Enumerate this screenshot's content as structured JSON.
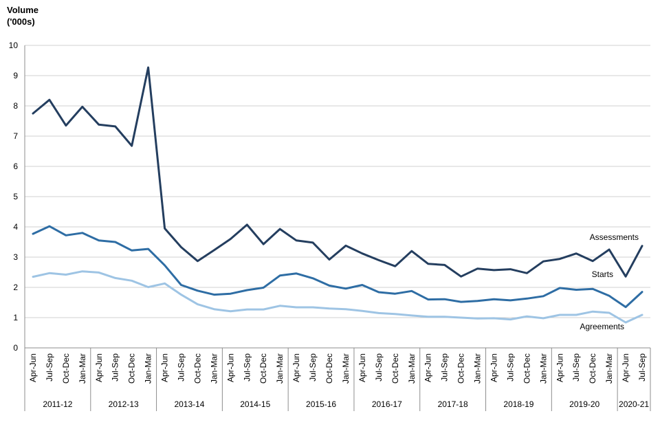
{
  "chart_data": {
    "type": "line",
    "title": "",
    "ylabel_line1": "Volume",
    "ylabel_line2": "('000s)",
    "xlabel": "",
    "ylim": [
      0,
      10
    ],
    "yticks": [
      0,
      1,
      2,
      3,
      4,
      5,
      6,
      7,
      8,
      9,
      10
    ],
    "grid": true,
    "categories": [
      "Apr-Jun",
      "Jul-Sep",
      "Oct-Dec",
      "Jan-Mar",
      "Apr-Jun",
      "Jul-Sep",
      "Oct-Dec",
      "Jan-Mar",
      "Apr-Jun",
      "Jul-Sep",
      "Oct-Dec",
      "Jan-Mar",
      "Apr-Jun",
      "Jul-Sep",
      "Oct-Dec",
      "Jan-Mar",
      "Apr-Jun",
      "Jul-Sep",
      "Oct-Dec",
      "Jan-Mar",
      "Apr-Jun",
      "Jul-Sep",
      "Oct-Dec",
      "Jan-Mar",
      "Apr-Jun",
      "Jul-Sep",
      "Oct-Dec",
      "Jan-Mar",
      "Apr-Jun",
      "Jul-Sep",
      "Oct-Dec",
      "Jan-Mar",
      "Apr-Jun",
      "Jul-Sep",
      "Oct-Dec",
      "Jan-Mar",
      "Apr-Jun",
      "Jul-Sep"
    ],
    "year_groups": [
      {
        "label": "2011-12",
        "count": 4
      },
      {
        "label": "2012-13",
        "count": 4
      },
      {
        "label": "2013-14",
        "count": 4
      },
      {
        "label": "2014-15",
        "count": 4
      },
      {
        "label": "2015-16",
        "count": 4
      },
      {
        "label": "2016-17",
        "count": 4
      },
      {
        "label": "2017-18",
        "count": 4
      },
      {
        "label": "2018-19",
        "count": 4
      },
      {
        "label": "2019-20",
        "count": 4
      },
      {
        "label": "2020-21",
        "count": 2
      }
    ],
    "series": [
      {
        "name": "Assessments",
        "color": "#243e5f",
        "values": [
          7.75,
          8.2,
          7.35,
          7.97,
          7.38,
          7.32,
          6.68,
          9.27,
          3.95,
          3.33,
          2.87,
          3.23,
          3.6,
          4.07,
          3.43,
          3.93,
          3.55,
          3.48,
          2.92,
          3.38,
          3.12,
          2.9,
          2.7,
          3.2,
          2.78,
          2.74,
          2.36,
          2.62,
          2.57,
          2.6,
          2.47,
          2.86,
          2.94,
          3.12,
          2.87,
          3.25,
          2.36,
          3.37
        ]
      },
      {
        "name": "Starts",
        "color": "#2e6da4",
        "values": [
          3.77,
          4.02,
          3.72,
          3.8,
          3.55,
          3.5,
          3.22,
          3.27,
          2.73,
          2.08,
          1.89,
          1.76,
          1.79,
          1.91,
          1.99,
          2.39,
          2.46,
          2.3,
          2.06,
          1.96,
          2.08,
          1.84,
          1.79,
          1.88,
          1.6,
          1.61,
          1.52,
          1.55,
          1.61,
          1.57,
          1.63,
          1.71,
          1.98,
          1.92,
          1.95,
          1.72,
          1.35,
          1.85
        ]
      },
      {
        "name": "Agreements",
        "color": "#9ec4e4",
        "values": [
          2.35,
          2.47,
          2.42,
          2.53,
          2.49,
          2.31,
          2.22,
          2.01,
          2.13,
          1.76,
          1.44,
          1.28,
          1.21,
          1.27,
          1.27,
          1.39,
          1.34,
          1.34,
          1.3,
          1.28,
          1.22,
          1.15,
          1.12,
          1.07,
          1.03,
          1.03,
          1.0,
          0.97,
          0.98,
          0.94,
          1.04,
          0.98,
          1.09,
          1.09,
          1.2,
          1.16,
          0.84,
          1.09
        ]
      }
    ]
  }
}
